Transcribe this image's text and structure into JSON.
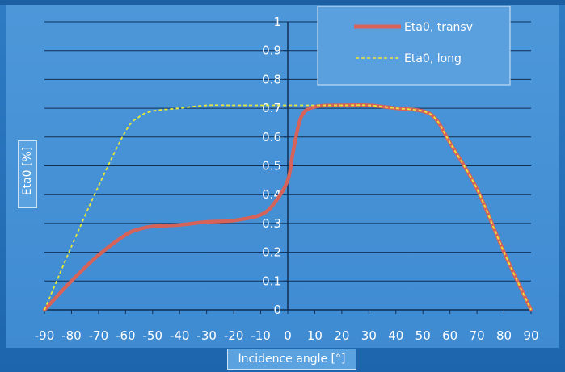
{
  "chart_data": {
    "type": "line",
    "xlabel": "Incidence angle [°]",
    "ylabel": "Eta0 [%]",
    "xlim": [
      -90,
      90
    ],
    "ylim": [
      0,
      1
    ],
    "x_ticks": [
      "-90",
      "-80",
      "-70",
      "-60",
      "-50",
      "-40",
      "-30",
      "-20",
      "-10",
      "0",
      "10",
      "20",
      "30",
      "40",
      "50",
      "60",
      "70",
      "80",
      "90"
    ],
    "y_ticks": [
      "0",
      "0.1",
      "0.2",
      "0.3",
      "0.4",
      "0.5",
      "0.6",
      "0.7",
      "0.8",
      "0.9",
      "1"
    ],
    "grid": "horizontal",
    "legend_position": "top-right",
    "series": [
      {
        "name": "Eta0, transv",
        "color": "#d6635a",
        "style": "solid",
        "x": [
          -90,
          -80,
          -70,
          -60,
          -55,
          -50,
          -40,
          -30,
          -20,
          -10,
          -5,
          0,
          2,
          5,
          10,
          20,
          30,
          40,
          50,
          55,
          60,
          70,
          80,
          90
        ],
        "y": [
          0,
          0.1,
          0.19,
          0.26,
          0.28,
          0.29,
          0.295,
          0.305,
          0.31,
          0.33,
          0.37,
          0.45,
          0.55,
          0.67,
          0.705,
          0.71,
          0.71,
          0.7,
          0.69,
          0.66,
          0.58,
          0.42,
          0.2,
          0
        ]
      },
      {
        "name": "Eta0, long",
        "color": "#e8e83a",
        "style": "dashed",
        "x": [
          -90,
          -80,
          -70,
          -60,
          -55,
          -50,
          -40,
          -30,
          -20,
          -10,
          0,
          10,
          20,
          30,
          40,
          50,
          55,
          60,
          70,
          80,
          90
        ],
        "y": [
          0,
          0.22,
          0.43,
          0.62,
          0.67,
          0.69,
          0.7,
          0.71,
          0.71,
          0.71,
          0.71,
          0.71,
          0.71,
          0.71,
          0.7,
          0.69,
          0.66,
          0.58,
          0.42,
          0.2,
          0
        ]
      }
    ]
  }
}
